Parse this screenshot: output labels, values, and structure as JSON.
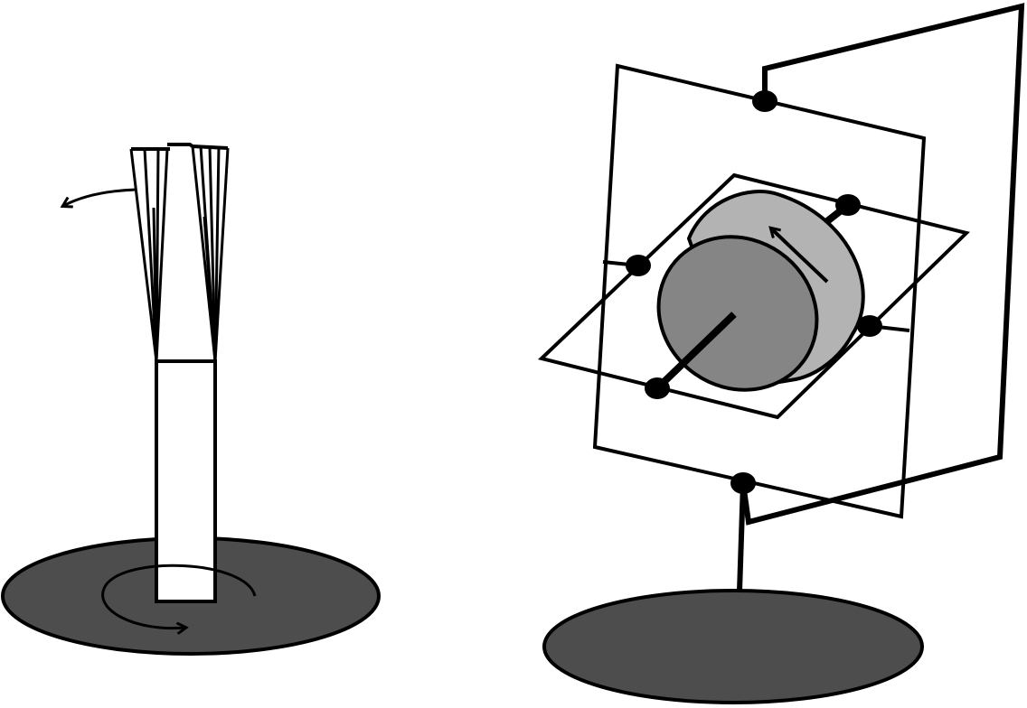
{
  "colors": {
    "background": "#ffffff",
    "stroke": "#000000",
    "base_fill": "#4d4d4d",
    "rotor_face": "#858585",
    "rotor_side": "#b3b3b3",
    "column_fill": "#ffffff"
  },
  "icons": {
    "base_rotation_arrow": "circular-arrow-icon",
    "torsion_arrow": "curved-arrow-icon",
    "spin_arrow": "spin-arrow-icon"
  }
}
